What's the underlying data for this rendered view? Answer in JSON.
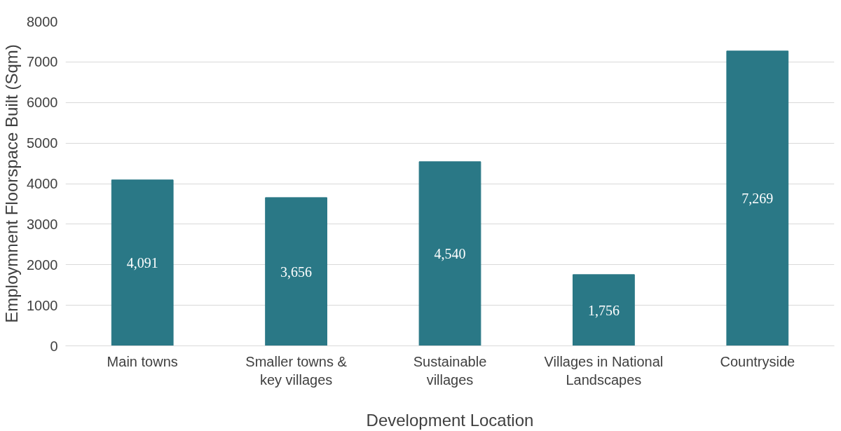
{
  "chart_data": {
    "type": "bar",
    "xlabel": "Development Location",
    "ylabel": "Employmnent Floorspace Built (Sqm)",
    "categories": [
      "Main towns",
      "Smaller towns &\nkey villages",
      "Sustainable\nvillages",
      "Villages in National\nLandscapes",
      "Countryside"
    ],
    "values": [
      4091,
      3656,
      4540,
      1756,
      7269
    ],
    "color": "#2a7886",
    "value_labels": [
      "4,091",
      "3,656",
      "4,540",
      "1,756",
      "7,269"
    ],
    "ylim": [
      0,
      8000
    ],
    "yticks": [
      0,
      1000,
      2000,
      3000,
      4000,
      5000,
      6000,
      7000,
      8000
    ],
    "grid": "y"
  }
}
